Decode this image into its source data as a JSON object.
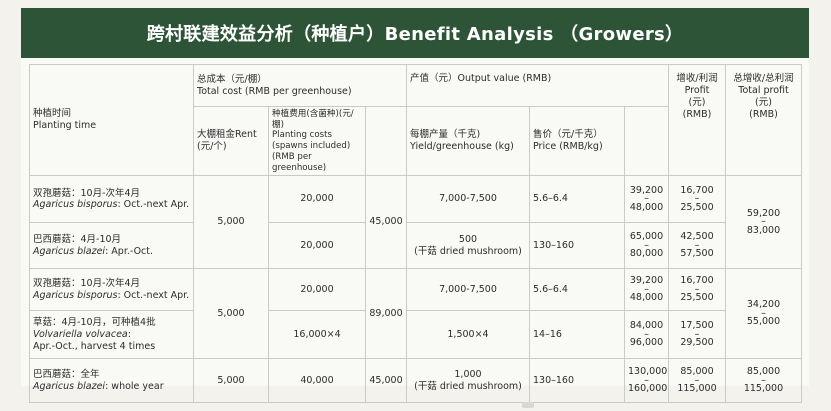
{
  "title": "跨村联建效益分析（种植户）Benefit Analysis （Growers）",
  "headers": {
    "planting_time": [
      "种植时间",
      "Planting time"
    ],
    "total_cost": [
      "总成本（元/棚）",
      "Total cost (RMB per greenhouse)"
    ],
    "rent": [
      "大棚租金Rent",
      "(元/个)"
    ],
    "planting_costs": [
      "种植费用(含菌种)(元/棚)",
      "Planting costs",
      "(spawns included)",
      "(RMB per greenhouse)"
    ],
    "output_value": "产值（元）Output value (RMB)",
    "yield": [
      "每棚产量（千克)",
      "Yield/greenhouse (kg)"
    ],
    "price": [
      "售价（元/千克）",
      "Price  (RMB/kg)"
    ],
    "profit": [
      "增收/利润",
      "Profit",
      "(元)",
      "(RMB)"
    ],
    "total_profit": [
      "总增收/总利润",
      "Total profit",
      "(元)",
      "(RMB)"
    ]
  },
  "rows": {
    "r1": {
      "crop_cn": "双孢蘑菇：10月-次年4月",
      "crop_en": "Agaricus bisporus",
      "period": ": Oct.-next Apr.",
      "cost": "20,000",
      "yield": "7,000-7,500",
      "price": "5.6–6.4",
      "out_a": "39,200",
      "out_b": "48,000",
      "profit_a": "16,700",
      "profit_b": "25,500"
    },
    "r2": {
      "crop_cn": "巴西蘑菇：4月-10月",
      "crop_en": "Agaricus blazei",
      "period": ": Apr.-Oct.",
      "cost": "20,000",
      "yield_a": "500",
      "yield_b": "(干菇 dried mushroom)",
      "price": "130–160",
      "out_a": "65,000",
      "out_b": "80,000",
      "profit_a": "42,500",
      "profit_b": "57,500"
    },
    "g1": {
      "rent": "5,000",
      "total_cost": "45,000",
      "total_profit_a": "59,200",
      "total_profit_b": "83,000"
    },
    "r3": {
      "crop_cn": "双孢蘑菇：10月-次年4月",
      "crop_en": "Agaricus bisporus",
      "period": ": Oct.-next Apr.",
      "cost": "20,000",
      "yield": "7,000-7,500",
      "price": "5.6–6.4",
      "out_a": "39,200",
      "out_b": "48,000",
      "profit_a": "16,700",
      "profit_b": "25,500"
    },
    "r4": {
      "crop_cn": "草菇：4月-10月，可种植4批",
      "crop_en": "Volvariella volvacea",
      "period": ":",
      "crop_extra": "Apr.-Oct., harvest 4 times",
      "cost": "16,000×4",
      "yield": "1,500×4",
      "price": "14–16",
      "out_a": "84,000",
      "out_b": "96,000",
      "profit_a": "17,500",
      "profit_b": "29,500"
    },
    "g2": {
      "rent": "5,000",
      "total_cost": "89,000",
      "total_profit_a": "34,200",
      "total_profit_b": "55,000"
    },
    "r5": {
      "crop_cn": "巴西蘑菇：全年",
      "crop_en": "Agaricus blazei",
      "period": ":  whole year",
      "rent": "5,000",
      "cost": "40,000",
      "total_cost": "45,000",
      "yield_a": "1,000",
      "yield_b": "(干菇 dried mushroom)",
      "price": "130–160",
      "out_a": "130,000",
      "out_b": "160,000",
      "profit_a": "85,000",
      "profit_b": "115,000",
      "total_profit_a": "85,000",
      "total_profit_b": "115,000"
    }
  },
  "dash": "–",
  "colors": {
    "header_bg": "#2d5436",
    "header_text": "#ffffff",
    "border": "#c9ccc6"
  }
}
